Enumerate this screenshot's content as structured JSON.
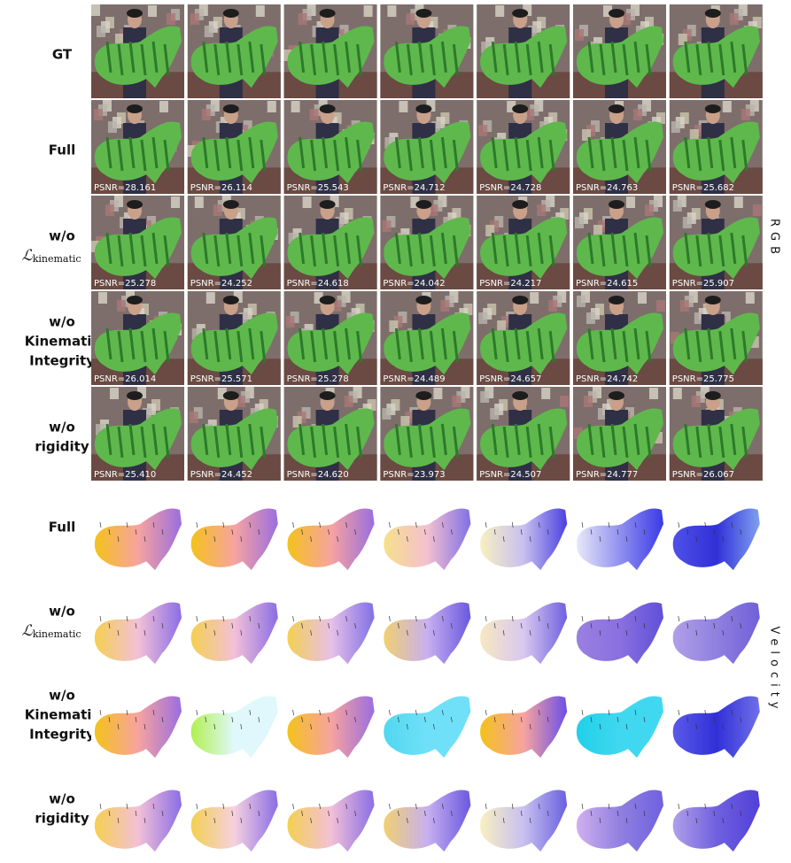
{
  "rgb": {
    "side_label": "RGB",
    "rows": [
      {
        "label_lines": [
          "GT"
        ]
      },
      {
        "label_lines": [
          "Full"
        ],
        "psnr": [
          "PSNR=28.161",
          "PSNR=26.114",
          "PSNR=25.543",
          "PSNR=24.712",
          "PSNR=24.728",
          "PSNR=24.763",
          "PSNR=25.682"
        ]
      },
      {
        "label_lines": [
          "w/o"
        ],
        "math": {
          "symbol": "ℒ",
          "subscript": "kinematic"
        },
        "psnr": [
          "PSNR=25.278",
          "PSNR=24.252",
          "PSNR=24.618",
          "PSNR=24.042",
          "PSNR=24.217",
          "PSNR=24.615",
          "PSNR=25.907"
        ]
      },
      {
        "label_lines": [
          "w/o",
          "Kinematic",
          "Integrity"
        ],
        "psnr": [
          "PSNR=26.014",
          "PSNR=25.571",
          "PSNR=25.278",
          "PSNR=24.489",
          "PSNR=24.657",
          "PSNR=24.742",
          "PSNR=25.775"
        ]
      },
      {
        "label_lines": [
          "w/o",
          "rigidity"
        ],
        "psnr": [
          "PSNR=25.410",
          "PSNR=24.452",
          "PSNR=24.620",
          "PSNR=23.973",
          "PSNR=24.507",
          "PSNR=24.777",
          "PSNR=26.067"
        ]
      }
    ]
  },
  "velocity": {
    "side_label": "Velocity",
    "rows": [
      {
        "label_lines": [
          "Full"
        ]
      },
      {
        "label_lines": [
          "w/o"
        ],
        "math": {
          "symbol": "ℒ",
          "subscript": "kinematic"
        }
      },
      {
        "label_lines": [
          "w/o",
          "Kinematic",
          "Integrity"
        ]
      },
      {
        "label_lines": [
          "w/o",
          "rigidity"
        ]
      }
    ]
  }
}
